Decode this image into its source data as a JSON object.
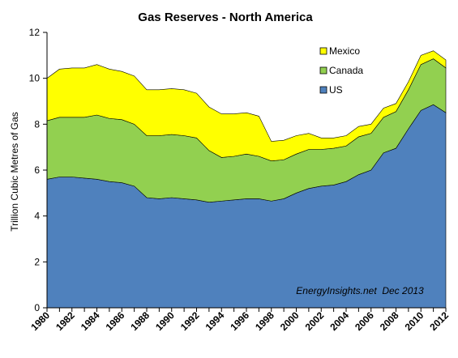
{
  "chart_data": {
    "type": "area",
    "stacked": true,
    "title": "Gas Reserves - North America",
    "xlabel": "",
    "ylabel": "Trillion Cubic Metres of Gas",
    "annotation": "EnergyInsights.net  Dec 2013",
    "ylim": [
      0,
      12
    ],
    "yticks": [
      0,
      2,
      4,
      6,
      8,
      10,
      12
    ],
    "grid": false,
    "legend_position": "top-right",
    "x": [
      1980,
      1981,
      1982,
      1983,
      1984,
      1985,
      1986,
      1987,
      1988,
      1989,
      1990,
      1991,
      1992,
      1993,
      1994,
      1995,
      1996,
      1997,
      1998,
      1999,
      2000,
      2001,
      2002,
      2003,
      2004,
      2005,
      2006,
      2007,
      2008,
      2009,
      2010,
      2011,
      2012
    ],
    "xticks": [
      "1980",
      "1982",
      "1984",
      "1986",
      "1988",
      "1990",
      "1992",
      "1994",
      "1996",
      "1998",
      "2000",
      "2002",
      "2004",
      "2006",
      "2008",
      "2010",
      "2012"
    ],
    "series": [
      {
        "name": "US",
        "color": "#4f81bd",
        "values": [
          5.6,
          5.7,
          5.7,
          5.65,
          5.6,
          5.5,
          5.45,
          5.3,
          4.8,
          4.75,
          4.8,
          4.75,
          4.7,
          4.6,
          4.65,
          4.7,
          4.75,
          4.75,
          4.65,
          4.75,
          5.0,
          5.2,
          5.3,
          5.35,
          5.5,
          5.8,
          6.0,
          6.75,
          6.95,
          7.8,
          8.6,
          8.85,
          8.5
        ]
      },
      {
        "name": "Canada",
        "color": "#92d050",
        "values": [
          2.55,
          2.6,
          2.6,
          2.65,
          2.8,
          2.75,
          2.75,
          2.7,
          2.7,
          2.75,
          2.75,
          2.75,
          2.7,
          2.25,
          1.9,
          1.9,
          1.95,
          1.85,
          1.75,
          1.7,
          1.7,
          1.7,
          1.6,
          1.6,
          1.55,
          1.65,
          1.6,
          1.55,
          1.6,
          1.7,
          2.0,
          2.0,
          1.95
        ]
      },
      {
        "name": "Mexico",
        "color": "#ffff00",
        "values": [
          1.85,
          2.1,
          2.15,
          2.15,
          2.2,
          2.15,
          2.1,
          2.1,
          2.0,
          2.0,
          2.0,
          2.0,
          1.95,
          1.9,
          1.9,
          1.85,
          1.8,
          1.75,
          0.85,
          0.85,
          0.8,
          0.7,
          0.5,
          0.45,
          0.45,
          0.45,
          0.4,
          0.4,
          0.35,
          0.35,
          0.4,
          0.35,
          0.35
        ]
      }
    ]
  }
}
